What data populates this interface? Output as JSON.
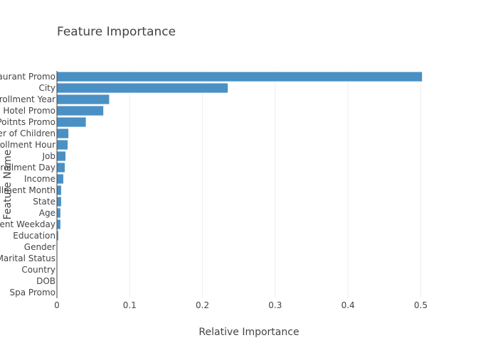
{
  "chart_data": {
    "type": "bar",
    "orientation": "horizontal",
    "title": "Feature Importance",
    "xlabel": "Relative Importance",
    "ylabel": "Feature Name",
    "xlim": [
      0,
      0.525
    ],
    "xticks": [
      "0",
      "0.1",
      "0.2",
      "0.3",
      "0.4",
      "0.5"
    ],
    "xtick_values": [
      0,
      0.1,
      0.2,
      0.3,
      0.4,
      0.5
    ],
    "grid": true,
    "legend": "none",
    "bar_color": "#4a90c4",
    "categories": [
      "Restaurant Promo",
      "City",
      "Enrollment Year",
      "Hotel Promo",
      "Poitnts Promo",
      "Number of Children",
      "Enrollment Hour",
      "Job",
      "Enrollment Day",
      "Income",
      "Enrollment Month",
      "State",
      "Age",
      "Enrollment Weekday",
      "Education",
      "Gender",
      "Marital Status",
      "Country",
      "DOB",
      "Spa Promo"
    ],
    "values": [
      0.502,
      0.235,
      0.072,
      0.064,
      0.04,
      0.016,
      0.015,
      0.012,
      0.011,
      0.009,
      0.006,
      0.006,
      0.005,
      0.005,
      0.002,
      0.0008,
      0.0005,
      0.0005,
      0.0004,
      0.0003
    ]
  }
}
